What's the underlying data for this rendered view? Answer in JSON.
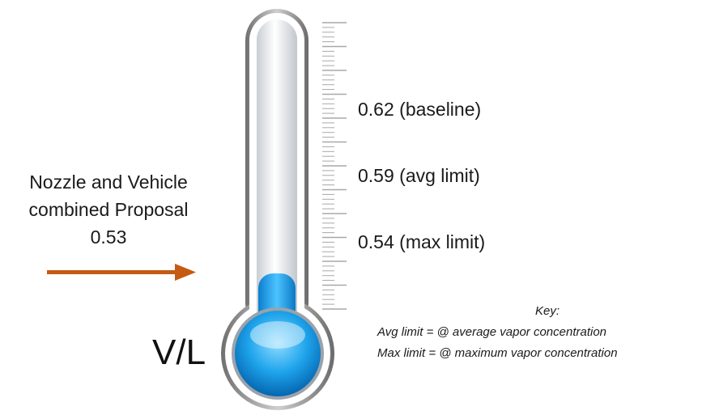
{
  "proposal": {
    "lines": [
      "Nozzle and Vehicle",
      "combined Proposal",
      "0.53"
    ],
    "value": 0.53,
    "arrow_color": "#c55a11"
  },
  "gauge_label": "V/L",
  "levels": [
    {
      "value": 0.62,
      "label": "0.62 (baseline)"
    },
    {
      "value": 0.59,
      "label": "0.59 (avg  limit)"
    },
    {
      "value": 0.54,
      "label": "0.54 (max limit)"
    }
  ],
  "key": {
    "title": "Key:",
    "lines": [
      "Avg limit = @ average vapor concentration",
      "Max limit = @ maximum vapor concentration"
    ]
  },
  "colors": {
    "liquid": "#19a2ea",
    "tube": "#e8ecef",
    "frame": "#8c8c8c",
    "ticks": "#a8a8a8"
  }
}
